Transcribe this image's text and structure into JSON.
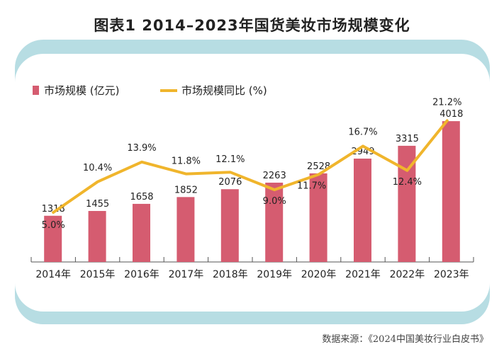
{
  "title": "图表1   2014–2023年国货美妆市场规模变化",
  "source": "数据来源：《2024中国美妆行业白皮书》",
  "chart_data": {
    "type": "bar+line",
    "categories": [
      "2014年",
      "2015年",
      "2016年",
      "2017年",
      "2018年",
      "2019年",
      "2020年",
      "2021年",
      "2022年",
      "2023年"
    ],
    "series": [
      {
        "name": "市场规模 (亿元)",
        "type": "bar",
        "color": "#d55c70",
        "values": [
          1318,
          1455,
          1658,
          1852,
          2076,
          2263,
          2528,
          2949,
          3315,
          4018
        ],
        "labels": [
          "1318",
          "1455",
          "1658",
          "1852",
          "2076",
          "2263",
          "2528",
          "2949",
          "3315",
          "4018"
        ]
      },
      {
        "name": "市场规模同比 (%)",
        "type": "line",
        "color": "#f0b52c",
        "values": [
          5.0,
          10.4,
          13.9,
          11.8,
          12.1,
          9.0,
          11.7,
          16.7,
          12.4,
          21.2
        ],
        "labels": [
          "5.0%",
          "10.4%",
          "13.9%",
          "11.8%",
          "12.1%",
          "9.0%",
          "11.7%",
          "16.7%",
          "12.4%",
          "21.2%"
        ]
      }
    ],
    "legend": "top-left",
    "grid": false
  }
}
